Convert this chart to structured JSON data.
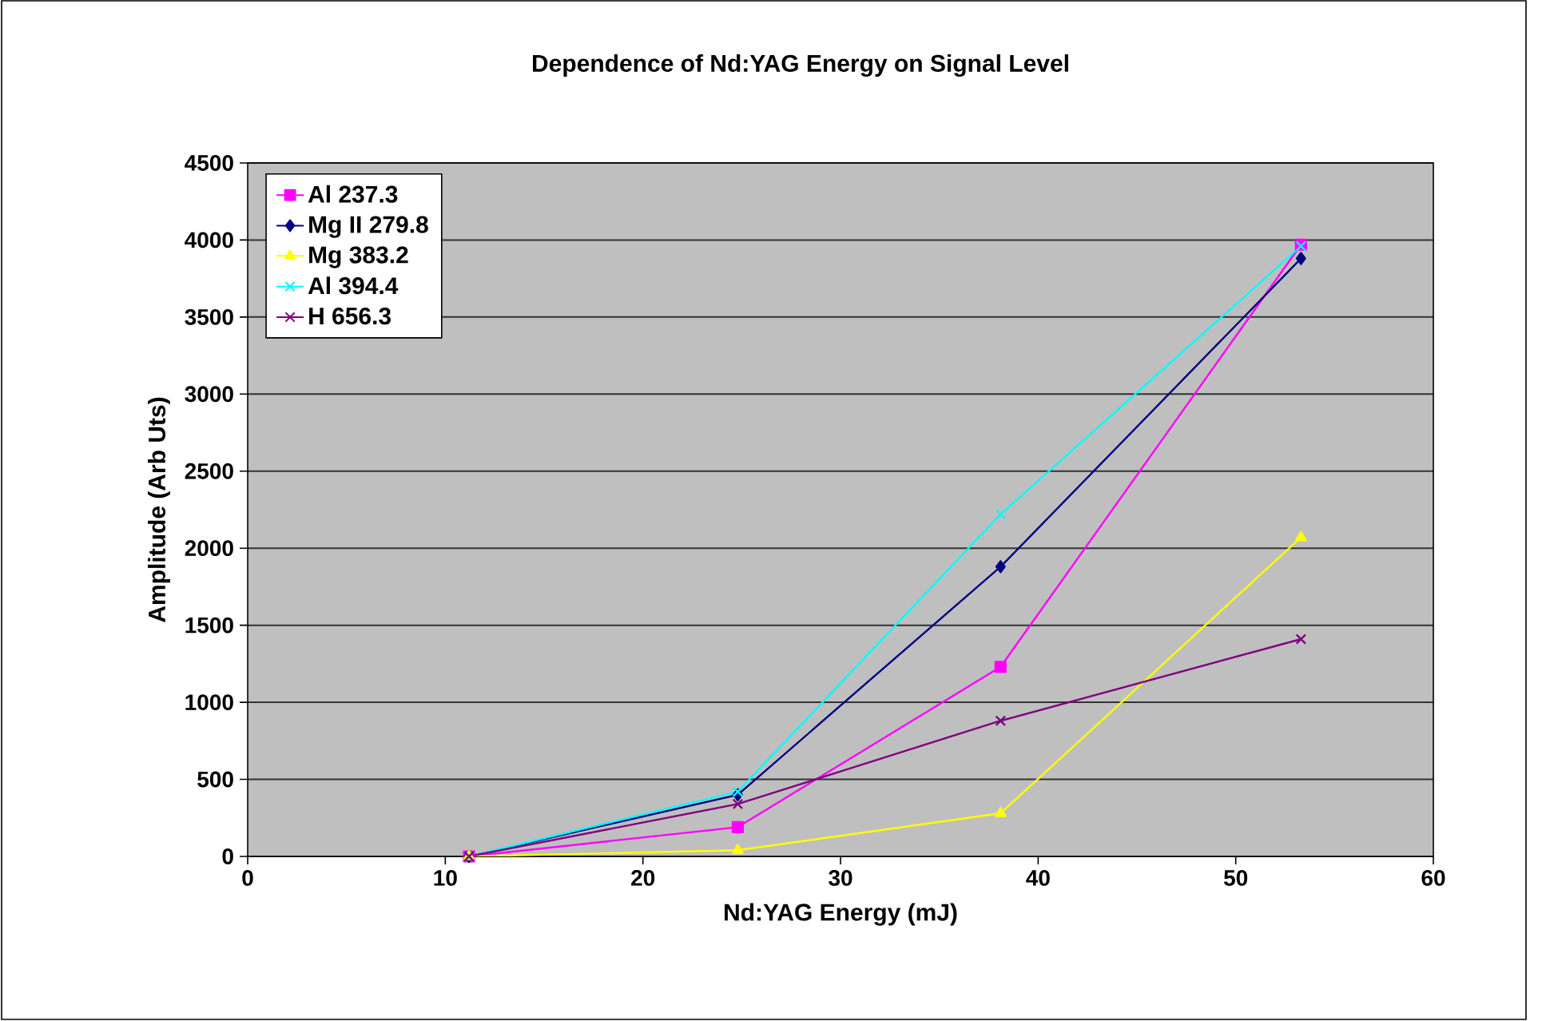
{
  "chart_data": {
    "type": "line",
    "title": "Dependence of Nd:YAG Energy on Signal Level",
    "xlabel": "Nd:YAG Energy (mJ)",
    "ylabel": "Amplitude (Arb Uts)",
    "x": [
      11.2,
      24.8,
      38.1,
      53.3
    ],
    "series": [
      {
        "name": "Al 237.3",
        "color": "#ff00ff",
        "marker": "square",
        "values": [
          0,
          190,
          1230,
          3970
        ]
      },
      {
        "name": "Mg II 279.8",
        "color": "#000080",
        "marker": "diamond",
        "values": [
          0,
          400,
          1880,
          3880
        ]
      },
      {
        "name": "Mg 383.2",
        "color": "#ffff00",
        "marker": "triangle",
        "values": [
          0,
          40,
          280,
          2070
        ]
      },
      {
        "name": "Al 394.4",
        "color": "#00ffff",
        "marker": "cross",
        "values": [
          0,
          420,
          2220,
          3960
        ]
      },
      {
        "name": "H 656.3",
        "color": "#800080",
        "marker": "cross",
        "values": [
          0,
          340,
          880,
          1410
        ]
      }
    ],
    "xlim": [
      0,
      60
    ],
    "xticks": [
      0,
      10,
      20,
      30,
      40,
      50,
      60
    ],
    "ylim": [
      0,
      4500
    ],
    "yticks": [
      0,
      500,
      1000,
      1500,
      2000,
      2500,
      3000,
      3500,
      4000,
      4500
    ],
    "grid": "y",
    "legend": "top left"
  }
}
